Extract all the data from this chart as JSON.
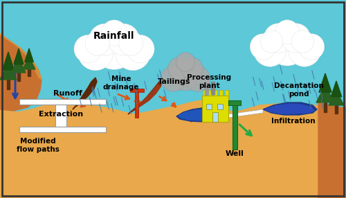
{
  "bg_sky": "#5CC8D8",
  "bg_ground": "#E8A84B",
  "hillside_color": "#C87030",
  "hill_shadow": "#A85A18",
  "runoff_arrow": "#E05515",
  "blue_arrow": "#2244AA",
  "green_arrow": "#22AA44",
  "tailings_color": "#7A2A10",
  "tailings_light": "#9A3A18",
  "pond_color": "#1A3A8A",
  "well_color": "#228833",
  "factory_color": "#DDDD00",
  "extraction_color": "#FFFFFF",
  "gray_cloud": "#BBBBBB",
  "labels": {
    "rainfall": "Rainfall",
    "runoff": "Runoff",
    "mine_drainage": "Mine\ndrainage",
    "tailings": "Tailings",
    "processing_plant": "Processing\nplant",
    "decantation_pond": "Decantation\npond",
    "extraction": "Extraction",
    "modified_flow": "Modified\nflow paths",
    "infiltration": "Infiltration",
    "well": "Well"
  }
}
